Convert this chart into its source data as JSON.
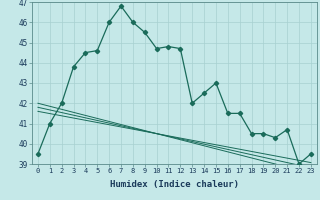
{
  "xlabel": "Humidex (Indice chaleur)",
  "bg_color": "#c5e8e8",
  "line_color": "#1a6b5a",
  "grid_color": "#a8d0d0",
  "x": [
    0,
    1,
    2,
    3,
    4,
    5,
    6,
    7,
    8,
    9,
    10,
    11,
    12,
    13,
    14,
    15,
    16,
    17,
    18,
    19,
    20,
    21,
    22,
    23
  ],
  "y_main": [
    39.5,
    41.0,
    42.0,
    43.8,
    44.5,
    44.6,
    46.0,
    46.8,
    46.0,
    45.5,
    44.7,
    44.8,
    44.7,
    42.0,
    42.5,
    43.0,
    41.5,
    41.5,
    40.5,
    40.5,
    40.3,
    40.7,
    39.0,
    39.5
  ],
  "y_trend1": [
    42.0,
    41.85,
    41.7,
    41.55,
    41.4,
    41.25,
    41.1,
    40.95,
    40.8,
    40.65,
    40.5,
    40.35,
    40.2,
    40.05,
    39.9,
    39.75,
    39.6,
    39.45,
    39.3,
    39.15,
    39.0,
    38.85,
    38.7,
    38.55
  ],
  "y_trend2": [
    41.8,
    41.67,
    41.54,
    41.41,
    41.28,
    41.15,
    41.02,
    40.89,
    40.76,
    40.63,
    40.5,
    40.37,
    40.24,
    40.11,
    39.98,
    39.85,
    39.72,
    39.59,
    39.46,
    39.33,
    39.2,
    39.07,
    38.94,
    38.81
  ],
  "y_trend3": [
    41.6,
    41.49,
    41.38,
    41.27,
    41.16,
    41.05,
    40.94,
    40.83,
    40.72,
    40.61,
    40.5,
    40.39,
    40.28,
    40.17,
    40.06,
    39.95,
    39.84,
    39.73,
    39.62,
    39.51,
    39.4,
    39.29,
    39.18,
    39.07
  ],
  "ylim": [
    39,
    47
  ],
  "yticks": [
    39,
    40,
    41,
    42,
    43,
    44,
    45,
    46,
    47
  ],
  "xtick_fontsize": 5.0,
  "ytick_fontsize": 5.5,
  "xlabel_fontsize": 6.5
}
